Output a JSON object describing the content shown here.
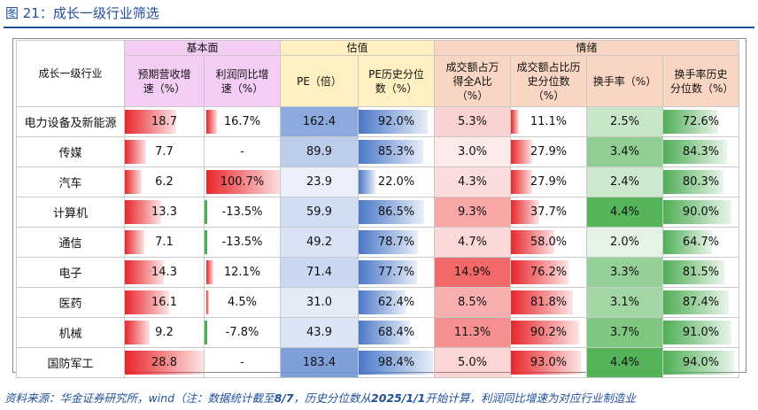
{
  "figure_title": "图 21：成长一级行业筛选",
  "source": {
    "prefix": "资料来源：华金证券研究所，wind（注：数据统计截至",
    "date1": "8/7",
    "mid": "，历史分位数从",
    "date2": "2025/1/1",
    "suffix": "开始计算，利润同比增速为对应行业制造业"
  },
  "headers": {
    "industry": "成长一级行业",
    "group_fundamentals": "基本面",
    "group_valuation": "估值",
    "group_sentiment": "情绪",
    "rev_growth": "预期营收增速（%）",
    "profit_growth": "利润同比增速（%）",
    "pe": "PE（倍）",
    "pe_pct": "PE历史分位数（%）",
    "turnover_share": "成交额占万得全A比（%）",
    "turnover_share_pct": "成交额占比历史分位数（%）",
    "turnover_rate": "换手率（%）",
    "turnover_rate_pct": "换手率历史分位数（%）"
  },
  "colors": {
    "bar_red": "#e8262b",
    "bar_blue": "#4a78c8",
    "bar_green": "#4fae56",
    "heat_red": "#f25c5c",
    "heat_green": "#4caf50",
    "heat_blue": "#6f95d6"
  },
  "rows": [
    {
      "industry": "电力设备及新能源",
      "rev": "18.7",
      "rev_v": 18.7,
      "profit": "16.7%",
      "profit_v": 16.7,
      "pe": "162.4",
      "pe_v": 162.4,
      "pe_pct": "92.0%",
      "pe_pct_v": 92.0,
      "ts": "5.3%",
      "ts_v": 5.3,
      "tsp": "11.1%",
      "tsp_v": 11.1,
      "tr": "2.5%",
      "tr_v": 2.5,
      "trp": "72.6%",
      "trp_v": 72.6
    },
    {
      "industry": "传媒",
      "rev": "7.7",
      "rev_v": 7.7,
      "profit": "-",
      "profit_v": null,
      "pe": "89.9",
      "pe_v": 89.9,
      "pe_pct": "85.3%",
      "pe_pct_v": 85.3,
      "ts": "3.0%",
      "ts_v": 3.0,
      "tsp": "27.9%",
      "tsp_v": 27.9,
      "tr": "3.4%",
      "tr_v": 3.4,
      "trp": "84.3%",
      "trp_v": 84.3
    },
    {
      "industry": "汽车",
      "rev": "6.2",
      "rev_v": 6.2,
      "profit": "100.7%",
      "profit_v": 100.7,
      "pe": "23.9",
      "pe_v": 23.9,
      "pe_pct": "22.0%",
      "pe_pct_v": 22.0,
      "ts": "4.3%",
      "ts_v": 4.3,
      "tsp": "27.9%",
      "tsp_v": 27.9,
      "tr": "2.4%",
      "tr_v": 2.4,
      "trp": "80.3%",
      "trp_v": 80.3
    },
    {
      "industry": "计算机",
      "rev": "13.3",
      "rev_v": 13.3,
      "profit": "-13.5%",
      "profit_v": -13.5,
      "pe": "59.9",
      "pe_v": 59.9,
      "pe_pct": "86.5%",
      "pe_pct_v": 86.5,
      "ts": "9.3%",
      "ts_v": 9.3,
      "tsp": "37.7%",
      "tsp_v": 37.7,
      "tr": "4.4%",
      "tr_v": 4.4,
      "trp": "90.0%",
      "trp_v": 90.0
    },
    {
      "industry": "通信",
      "rev": "7.1",
      "rev_v": 7.1,
      "profit": "-13.5%",
      "profit_v": -13.5,
      "pe": "49.2",
      "pe_v": 49.2,
      "pe_pct": "78.7%",
      "pe_pct_v": 78.7,
      "ts": "4.7%",
      "ts_v": 4.7,
      "tsp": "58.0%",
      "tsp_v": 58.0,
      "tr": "2.0%",
      "tr_v": 2.0,
      "trp": "64.7%",
      "trp_v": 64.7
    },
    {
      "industry": "电子",
      "rev": "14.3",
      "rev_v": 14.3,
      "profit": "12.1%",
      "profit_v": 12.1,
      "pe": "71.4",
      "pe_v": 71.4,
      "pe_pct": "77.7%",
      "pe_pct_v": 77.7,
      "ts": "14.9%",
      "ts_v": 14.9,
      "tsp": "76.2%",
      "tsp_v": 76.2,
      "tr": "3.3%",
      "tr_v": 3.3,
      "trp": "81.5%",
      "trp_v": 81.5
    },
    {
      "industry": "医药",
      "rev": "16.1",
      "rev_v": 16.1,
      "profit": "4.5%",
      "profit_v": 4.5,
      "pe": "31.0",
      "pe_v": 31.0,
      "pe_pct": "62.4%",
      "pe_pct_v": 62.4,
      "ts": "8.5%",
      "ts_v": 8.5,
      "tsp": "81.8%",
      "tsp_v": 81.8,
      "tr": "3.1%",
      "tr_v": 3.1,
      "trp": "87.4%",
      "trp_v": 87.4
    },
    {
      "industry": "机械",
      "rev": "9.2",
      "rev_v": 9.2,
      "profit": "-7.8%",
      "profit_v": -7.8,
      "pe": "43.9",
      "pe_v": 43.9,
      "pe_pct": "68.4%",
      "pe_pct_v": 68.4,
      "ts": "11.3%",
      "ts_v": 11.3,
      "tsp": "90.2%",
      "tsp_v": 90.2,
      "tr": "3.7%",
      "tr_v": 3.7,
      "trp": "91.0%",
      "trp_v": 91.0
    },
    {
      "industry": "国防军工",
      "rev": "28.8",
      "rev_v": 28.8,
      "profit": "-",
      "profit_v": null,
      "pe": "183.4",
      "pe_v": 183.4,
      "pe_pct": "98.4%",
      "pe_pct_v": 98.4,
      "ts": "5.0%",
      "ts_v": 5.0,
      "tsp": "93.0%",
      "tsp_v": 93.0,
      "tr": "4.4%",
      "tr_v": 4.4,
      "trp": "94.0%",
      "trp_v": 94.0
    }
  ]
}
